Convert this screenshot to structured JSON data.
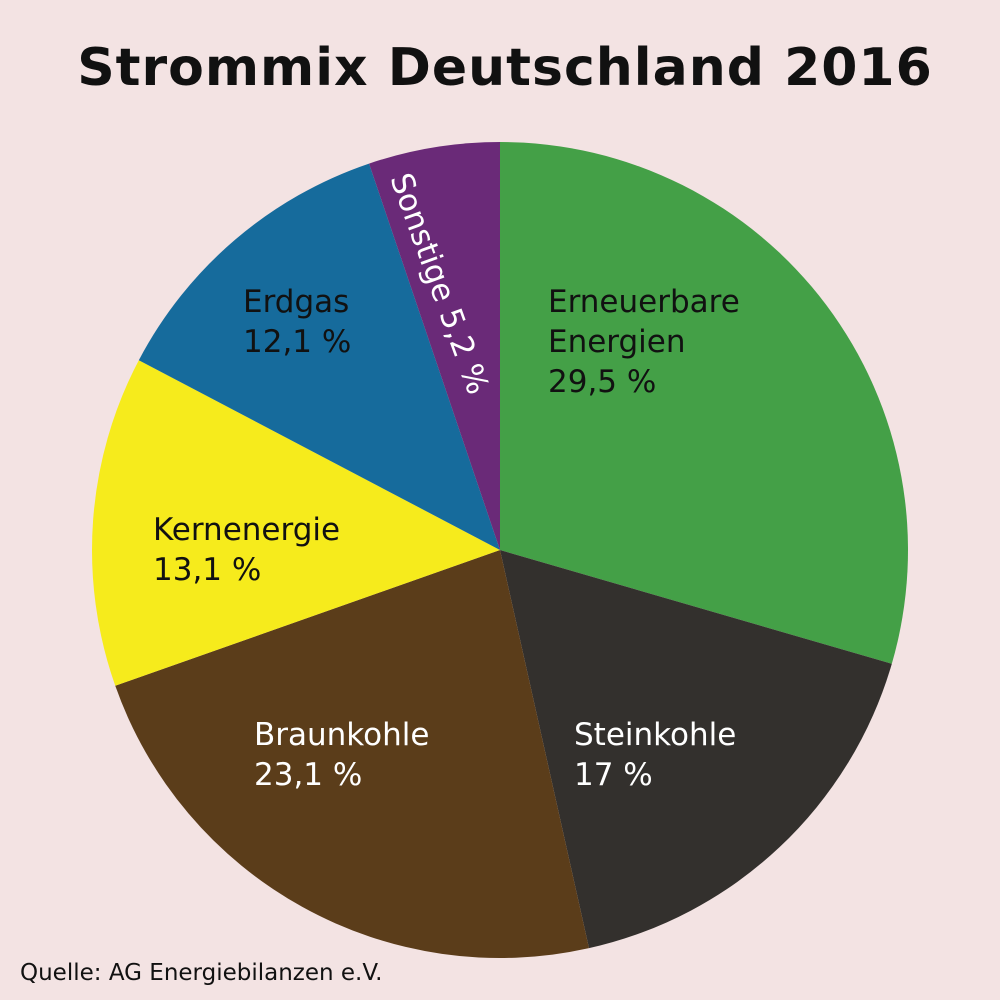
{
  "chart_data": {
    "type": "pie",
    "title": "Strommix Deutschland 2016",
    "source": "Quelle: AG Energiebilanzen e.V.",
    "slices": [
      {
        "name": "Erneuerbare Energien",
        "lines": [
          "Erneuerbare",
          "Energien"
        ],
        "value": 29.5,
        "value_label": "29,5 %",
        "color": "#44a047",
        "text_color": "#111111"
      },
      {
        "name": "Steinkohle",
        "lines": [
          "Steinkohle"
        ],
        "value": 17,
        "value_label": "17 %",
        "color": "#33302d",
        "text_color": "#ffffff"
      },
      {
        "name": "Braunkohle",
        "lines": [
          "Braunkohle"
        ],
        "value": 23.1,
        "value_label": "23,1 %",
        "color": "#5b3d1a",
        "text_color": "#ffffff"
      },
      {
        "name": "Kernenergie",
        "lines": [
          "Kernenergie"
        ],
        "value": 13.1,
        "value_label": "13,1 %",
        "color": "#f6eb1c",
        "text_color": "#111111"
      },
      {
        "name": "Erdgas",
        "lines": [
          "Erdgas"
        ],
        "value": 12.1,
        "value_label": "12,1 %",
        "color": "#166b9c",
        "text_color": "#111111"
      },
      {
        "name": "Sonstige",
        "lines": [
          "Sonstige 5,2 %"
        ],
        "value": 5.2,
        "value_label": "",
        "color": "#6a2a78",
        "text_color": "#ffffff",
        "rotated": true
      }
    ]
  }
}
